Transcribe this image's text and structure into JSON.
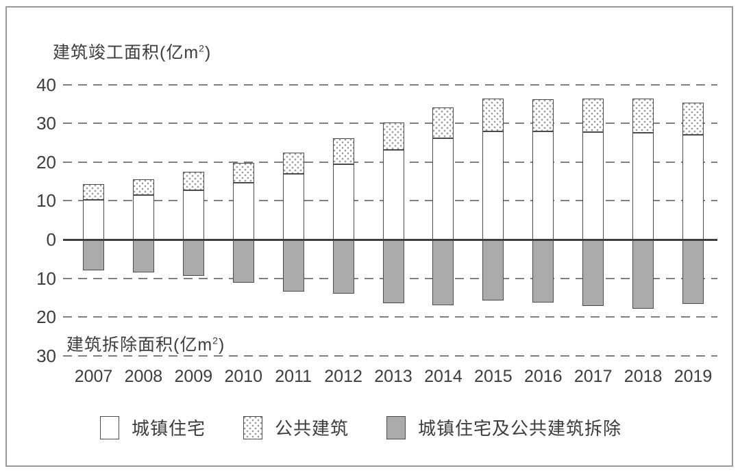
{
  "labels": {
    "top_pre": "建筑竣工面积(亿m",
    "top_sup": "2",
    "top_post": ")",
    "bottom_pre": "建筑拆除面积(亿m",
    "bottom_sup": "2",
    "bottom_post": ")"
  },
  "colors": {
    "text": "#3d3d3d",
    "grid_dash": "#7f7f7f",
    "zero_line": "#3f3f3f",
    "bar_border": "#4a4a4a",
    "gray_fill": "#ababab",
    "dot_fill": "#9c9c9c",
    "frame_border": "#9a9a9a",
    "background": "#ffffff"
  },
  "chart_data": {
    "type": "bar",
    "subtype": "diverging-stacked-columns",
    "title_top": "建筑竣工面积(亿m²)",
    "title_bottom": "建筑拆除面积(亿m²)",
    "categories": [
      "2007",
      "2008",
      "2009",
      "2010",
      "2011",
      "2012",
      "2013",
      "2014",
      "2015",
      "2016",
      "2017",
      "2018",
      "2019"
    ],
    "series": [
      {
        "name": "城镇住宅",
        "style": "white",
        "direction": "up",
        "values": [
          10.3,
          11.5,
          12.7,
          14.6,
          16.9,
          19.4,
          23.1,
          26.2,
          27.9,
          27.9,
          27.8,
          27.5,
          27.0
        ]
      },
      {
        "name": "公共建筑",
        "style": "dotted",
        "direction": "up",
        "stacked_on": "城镇住宅",
        "values": [
          4.0,
          4.1,
          4.8,
          5.2,
          5.6,
          6.8,
          7.1,
          7.9,
          8.5,
          8.4,
          8.6,
          8.9,
          8.3
        ]
      },
      {
        "name": "城镇住宅及公共建筑拆除",
        "style": "gray",
        "direction": "down",
        "values": [
          8.0,
          8.5,
          9.4,
          11.2,
          13.5,
          14.0,
          16.4,
          17.0,
          15.7,
          16.2,
          17.2,
          17.8,
          16.6
        ]
      }
    ],
    "yticks": [
      {
        "label": "40",
        "value": 40
      },
      {
        "label": "30",
        "value": 30
      },
      {
        "label": "20",
        "value": 20
      },
      {
        "label": "10",
        "value": 10
      },
      {
        "label": "0",
        "value": 0
      },
      {
        "label": "10",
        "value": -10
      },
      {
        "label": "20",
        "value": -20
      },
      {
        "label": "30",
        "value": -30
      }
    ],
    "ylim": [
      -33,
      44
    ],
    "grid": "horizontal-dashed",
    "zero_line": "solid",
    "legend_position": "bottom"
  }
}
